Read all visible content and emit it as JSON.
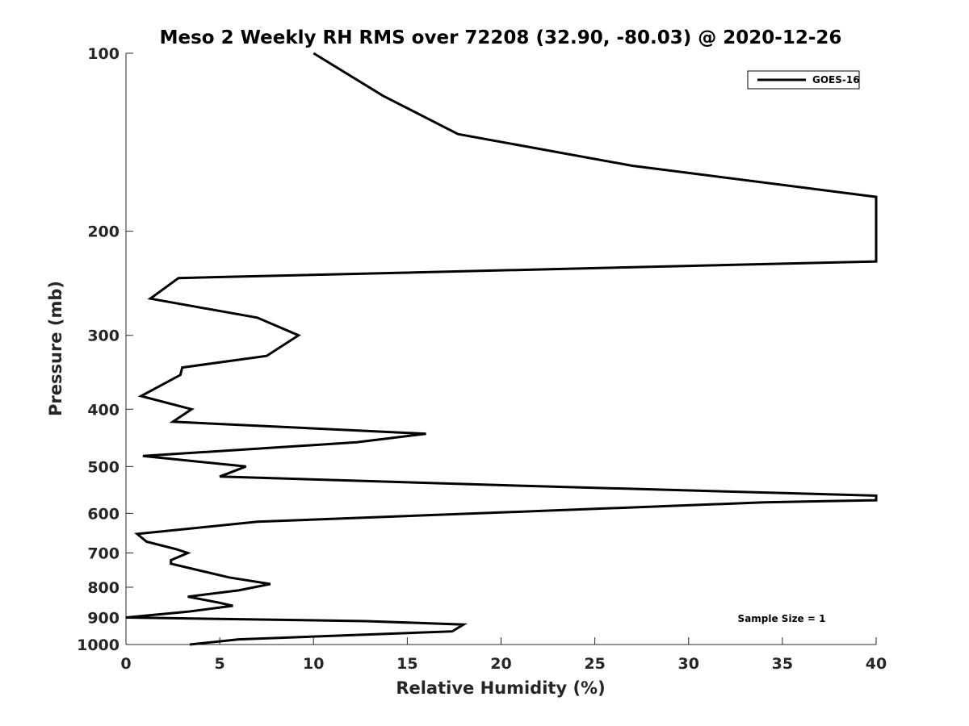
{
  "chart_data": {
    "type": "line",
    "title": "Meso 2 Weekly RH RMS over 72208 (32.90, -80.03) @ 2020-12-26",
    "xlabel": "Relative Humidity (%)",
    "ylabel": "Pressure (mb)",
    "xlim": [
      0,
      40
    ],
    "ylim": [
      100,
      1000
    ],
    "yscale": "log",
    "y_reversed": true,
    "grid": false,
    "legend_position": "top-right",
    "x_ticks": [
      0,
      5,
      10,
      15,
      20,
      25,
      30,
      35,
      40
    ],
    "x_tick_labels": [
      "0",
      "5",
      "10",
      "15",
      "20",
      "25",
      "30",
      "35",
      "40"
    ],
    "y_ticks": [
      100,
      200,
      300,
      400,
      500,
      600,
      700,
      800,
      900,
      1000
    ],
    "y_tick_labels": [
      "100",
      "200",
      "300",
      "400",
      "500",
      "600",
      "700",
      "800",
      "900",
      "1000"
    ],
    "annotation": "Sample Size = 1",
    "series": [
      {
        "name": "GOES-16",
        "color": "#000000",
        "points": [
          [
            10.0,
            100
          ],
          [
            13.7,
            118
          ],
          [
            17.7,
            137
          ],
          [
            27.0,
            155
          ],
          [
            40.0,
            175
          ],
          [
            40.0,
            225
          ],
          [
            2.8,
            240
          ],
          [
            1.3,
            260
          ],
          [
            7.0,
            280
          ],
          [
            9.2,
            300
          ],
          [
            7.5,
            325
          ],
          [
            3.0,
            340
          ],
          [
            2.9,
            350
          ],
          [
            0.8,
            380
          ],
          [
            3.5,
            400
          ],
          [
            2.5,
            420
          ],
          [
            16.0,
            440
          ],
          [
            12.3,
            455
          ],
          [
            0.9,
            480
          ],
          [
            6.4,
            500
          ],
          [
            5.0,
            520
          ],
          [
            22.0,
            540
          ],
          [
            40.0,
            560
          ],
          [
            40.0,
            570
          ],
          [
            34.0,
            575
          ],
          [
            7.0,
            620
          ],
          [
            0.6,
            650
          ],
          [
            1.1,
            670
          ],
          [
            2.7,
            690
          ],
          [
            3.3,
            700
          ],
          [
            2.4,
            720
          ],
          [
            2.4,
            730
          ],
          [
            5.5,
            770
          ],
          [
            7.7,
            790
          ],
          [
            6.0,
            810
          ],
          [
            3.3,
            830
          ],
          [
            5.0,
            850
          ],
          [
            5.7,
            860
          ],
          [
            3.3,
            880
          ],
          [
            0.0,
            900
          ],
          [
            12.8,
            913
          ],
          [
            18.0,
            925
          ],
          [
            17.4,
            950
          ],
          [
            6.0,
            980
          ],
          [
            3.4,
            1000
          ]
        ]
      }
    ]
  }
}
